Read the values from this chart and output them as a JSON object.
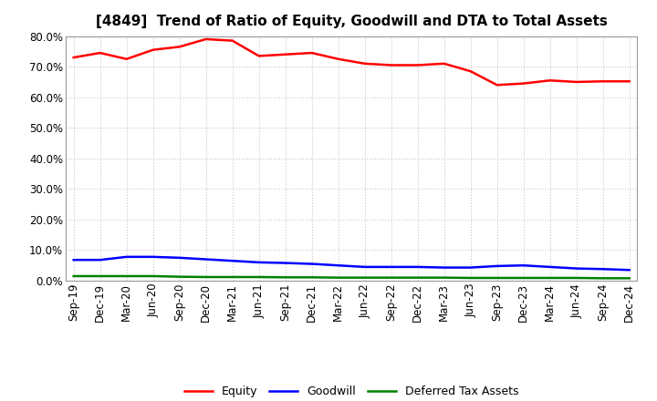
{
  "title": "[4849]  Trend of Ratio of Equity, Goodwill and DTA to Total Assets",
  "x_labels": [
    "Sep-19",
    "Dec-19",
    "Mar-20",
    "Jun-20",
    "Sep-20",
    "Dec-20",
    "Mar-21",
    "Jun-21",
    "Sep-21",
    "Dec-21",
    "Mar-22",
    "Jun-22",
    "Sep-22",
    "Dec-22",
    "Mar-23",
    "Jun-23",
    "Sep-23",
    "Dec-23",
    "Mar-24",
    "Jun-24",
    "Sep-24",
    "Dec-24"
  ],
  "equity": [
    73.0,
    74.5,
    72.5,
    75.5,
    76.5,
    79.0,
    78.5,
    73.5,
    74.0,
    74.5,
    72.5,
    71.0,
    70.5,
    70.5,
    71.0,
    68.5,
    64.0,
    64.5,
    65.5,
    65.0,
    65.2,
    65.2
  ],
  "goodwill": [
    6.8,
    6.8,
    7.8,
    7.8,
    7.5,
    7.0,
    6.5,
    6.0,
    5.8,
    5.5,
    5.0,
    4.5,
    4.5,
    4.5,
    4.3,
    4.3,
    4.8,
    5.0,
    4.5,
    4.0,
    3.8,
    3.5
  ],
  "dta": [
    1.5,
    1.5,
    1.5,
    1.5,
    1.3,
    1.2,
    1.2,
    1.2,
    1.1,
    1.1,
    1.0,
    1.0,
    1.0,
    1.0,
    1.0,
    0.9,
    0.9,
    0.9,
    0.9,
    0.9,
    0.8,
    0.8
  ],
  "equity_color": "#ff0000",
  "goodwill_color": "#0000ff",
  "dta_color": "#008000",
  "ylim": [
    0,
    80
  ],
  "yticks": [
    0,
    10,
    20,
    30,
    40,
    50,
    60,
    70,
    80
  ],
  "background_color": "#ffffff",
  "grid_color": "#bbbbbb",
  "legend_labels": [
    "Equity",
    "Goodwill",
    "Deferred Tax Assets"
  ],
  "title_fontsize": 11,
  "tick_fontsize": 8.5,
  "legend_fontsize": 9
}
